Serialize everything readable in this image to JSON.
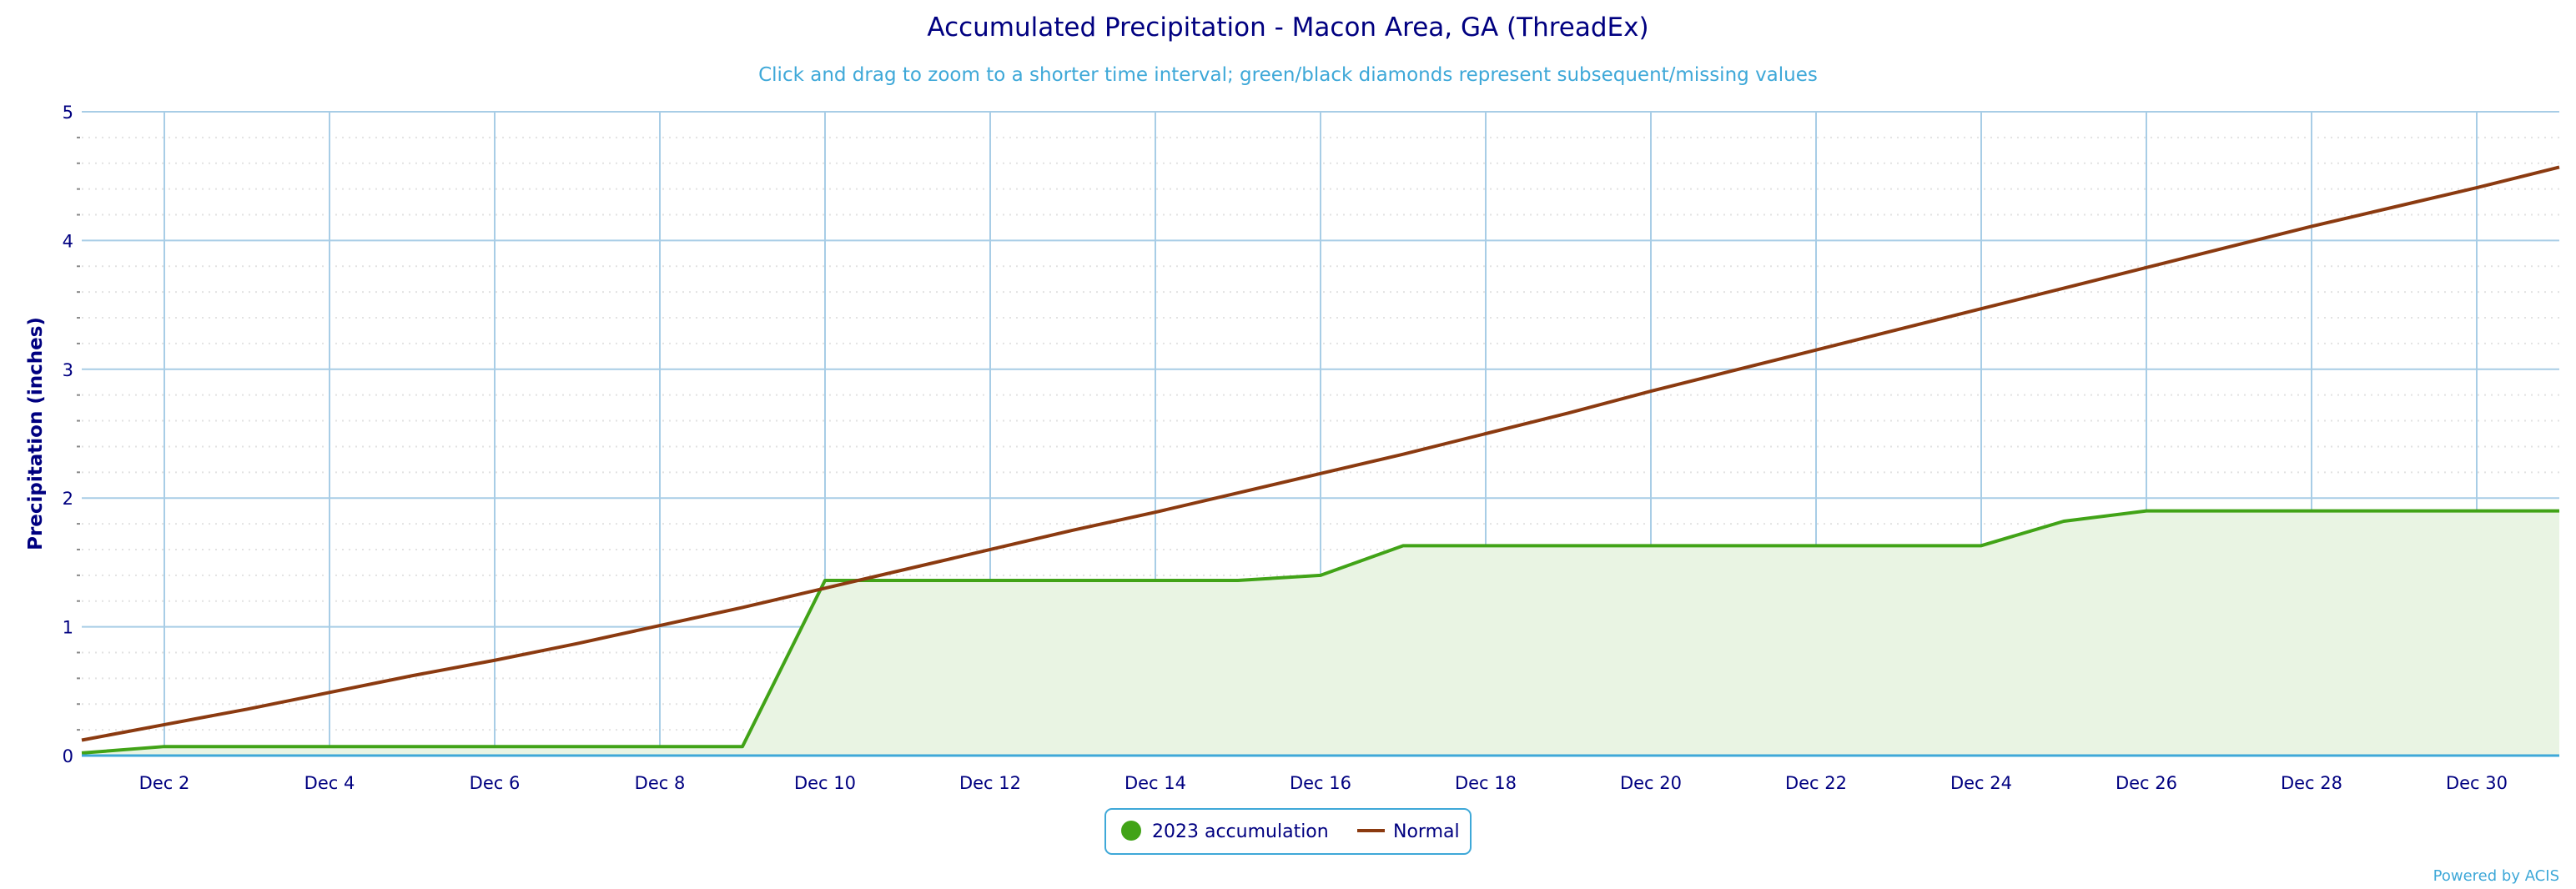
{
  "chart_data": {
    "type": "area",
    "title": "Accumulated Precipitation - Macon Area, GA (ThreadEx)",
    "subtitle": "Click and drag to zoom to a shorter time interval; green/black diamonds represent subsequent/missing values",
    "xlabel": "",
    "ylabel": "Precipitation (inches)",
    "ylim": [
      0,
      5
    ],
    "yticks": [
      "0",
      "1",
      "2",
      "3",
      "4",
      "5"
    ],
    "xticks": [
      "Dec 2",
      "Dec 4",
      "Dec 6",
      "Dec 8",
      "Dec 10",
      "Dec 12",
      "Dec 14",
      "Dec 16",
      "Dec 18",
      "Dec 20",
      "Dec 22",
      "Dec 24",
      "Dec 26",
      "Dec 28",
      "Dec 30"
    ],
    "xtick_days": [
      2,
      4,
      6,
      8,
      10,
      12,
      14,
      16,
      18,
      20,
      22,
      24,
      26,
      28,
      30
    ],
    "x_days": [
      1,
      2,
      3,
      4,
      5,
      6,
      7,
      8,
      9,
      10,
      11,
      12,
      13,
      14,
      15,
      16,
      17,
      18,
      19,
      20,
      21,
      22,
      23,
      24,
      25,
      26,
      27,
      28,
      29,
      30,
      31
    ],
    "grid": true,
    "legend_position": "bottom-center",
    "series": [
      {
        "name": "2023 accumulation",
        "color": "#41a317",
        "fill": "#e9f4e3",
        "values": [
          0.02,
          0.07,
          0.07,
          0.07,
          0.07,
          0.07,
          0.07,
          0.07,
          0.07,
          1.36,
          1.36,
          1.36,
          1.36,
          1.36,
          1.36,
          1.4,
          1.63,
          1.63,
          1.63,
          1.63,
          1.63,
          1.63,
          1.63,
          1.63,
          1.82,
          1.9,
          1.9,
          1.9,
          1.9,
          1.9,
          1.9
        ]
      },
      {
        "name": "Normal",
        "color": "#8b3a10",
        "values": [
          0.12,
          0.24,
          0.36,
          0.49,
          0.62,
          0.74,
          0.87,
          1.01,
          1.15,
          1.3,
          1.45,
          1.6,
          1.75,
          1.89,
          2.04,
          2.19,
          2.34,
          2.5,
          2.66,
          2.83,
          2.99,
          3.15,
          3.31,
          3.47,
          3.63,
          3.79,
          3.95,
          4.11,
          4.26,
          4.41,
          4.57
        ]
      }
    ],
    "credit": "Powered by ACIS"
  }
}
